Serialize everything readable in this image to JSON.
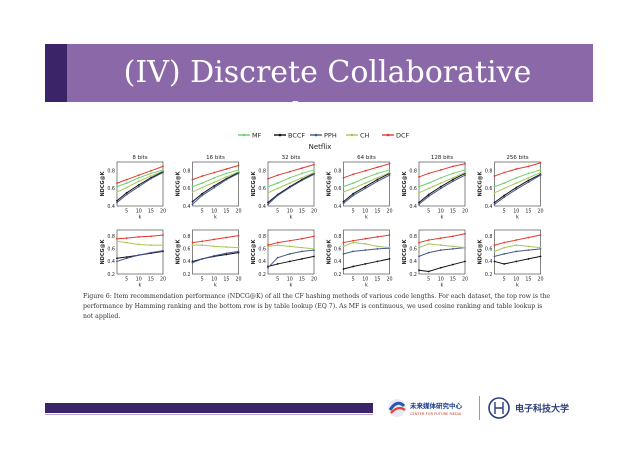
{
  "slide": {
    "title": "(IV) Discrete Collaborative Filtering",
    "caption": "Figure 6: Item recommendation performance (NDCG@K) of all the CF hashing methods of various code lengths. For each dataset, the top row is the performance by Hamming ranking and the bottom row is by table lookup (EQ 7). As MF is continuous, we used cosine ranking and table lookup is not applied.",
    "logo_left_cn": "未来媒体研究中心",
    "logo_left_en": "CENTER FOR FUTURE MEDIA",
    "logo_right_cn": "电子科技大学"
  },
  "colors": {
    "title_bar": "#8b68a8",
    "accent": "#3b2467",
    "MF": "#6fcf6f",
    "BCCF": "#111111",
    "PPH": "#46598f",
    "CH": "#a8c65a",
    "DCF": "#e03a2e"
  },
  "chart_data": {
    "type": "line",
    "title": "Netflix",
    "xlabel": "k",
    "ylabel": "NDCG@K",
    "x": [
      1,
      5,
      10,
      15,
      20
    ],
    "xticks": [
      5,
      10,
      15,
      20
    ],
    "legend": [
      "MF",
      "BCCF",
      "PPH",
      "CH",
      "DCF"
    ],
    "legend_placement": "top-center",
    "code_lengths": [
      "8 bits",
      "16 bits",
      "32 bits",
      "64 bits",
      "128 bits",
      "256 bits"
    ],
    "rows": [
      {
        "name": "Hamming ranking",
        "ylim": [
          0.4,
          0.9
        ],
        "yticks": [
          0.4,
          0.6,
          0.8
        ],
        "panels": [
          {
            "MF": [
              0.62,
              0.66,
              0.72,
              0.77,
              0.81
            ],
            "BCCF": [
              0.46,
              0.55,
              0.64,
              0.72,
              0.79
            ],
            "PPH": [
              0.44,
              0.53,
              0.62,
              0.71,
              0.78
            ],
            "CH": [
              0.56,
              0.61,
              0.68,
              0.74,
              0.8
            ],
            "DCF": [
              0.66,
              0.7,
              0.75,
              0.8,
              0.85
            ]
          },
          {
            "MF": [
              0.62,
              0.66,
              0.72,
              0.77,
              0.81
            ],
            "BCCF": [
              0.45,
              0.54,
              0.63,
              0.71,
              0.78
            ],
            "PPH": [
              0.42,
              0.52,
              0.61,
              0.7,
              0.77
            ],
            "CH": [
              0.56,
              0.61,
              0.67,
              0.73,
              0.79
            ],
            "DCF": [
              0.7,
              0.74,
              0.78,
              0.82,
              0.86
            ]
          },
          {
            "MF": [
              0.62,
              0.66,
              0.72,
              0.77,
              0.81
            ],
            "BCCF": [
              0.44,
              0.53,
              0.62,
              0.7,
              0.77
            ],
            "PPH": [
              0.42,
              0.52,
              0.61,
              0.69,
              0.76
            ],
            "CH": [
              0.55,
              0.6,
              0.66,
              0.72,
              0.78
            ],
            "DCF": [
              0.71,
              0.75,
              0.79,
              0.83,
              0.87
            ]
          },
          {
            "MF": [
              0.62,
              0.66,
              0.72,
              0.77,
              0.81
            ],
            "BCCF": [
              0.45,
              0.54,
              0.62,
              0.7,
              0.77
            ],
            "PPH": [
              0.43,
              0.52,
              0.6,
              0.68,
              0.75
            ],
            "CH": [
              0.56,
              0.6,
              0.66,
              0.72,
              0.78
            ],
            "DCF": [
              0.72,
              0.76,
              0.8,
              0.84,
              0.88
            ]
          },
          {
            "MF": [
              0.62,
              0.66,
              0.72,
              0.77,
              0.81
            ],
            "BCCF": [
              0.44,
              0.53,
              0.62,
              0.7,
              0.77
            ],
            "PPH": [
              0.42,
              0.51,
              0.6,
              0.68,
              0.75
            ],
            "CH": [
              0.55,
              0.6,
              0.66,
              0.72,
              0.78
            ],
            "DCF": [
              0.73,
              0.77,
              0.81,
              0.85,
              0.88
            ]
          },
          {
            "MF": [
              0.62,
              0.66,
              0.72,
              0.77,
              0.81
            ],
            "BCCF": [
              0.44,
              0.52,
              0.61,
              0.69,
              0.76
            ],
            "PPH": [
              0.42,
              0.5,
              0.59,
              0.67,
              0.75
            ],
            "CH": [
              0.55,
              0.6,
              0.66,
              0.72,
              0.78
            ],
            "DCF": [
              0.74,
              0.78,
              0.82,
              0.85,
              0.89
            ]
          }
        ]
      },
      {
        "name": "Table lookup",
        "ylim": [
          0.2,
          0.9
        ],
        "yticks": [
          0.2,
          0.4,
          0.6,
          0.8
        ],
        "panels": [
          {
            "BCCF": [
              0.45,
              0.47,
              0.5,
              0.53,
              0.56
            ],
            "PPH": [
              0.4,
              0.45,
              0.5,
              0.54,
              0.57
            ],
            "CH": [
              0.72,
              0.7,
              0.67,
              0.66,
              0.66
            ],
            "DCF": [
              0.76,
              0.77,
              0.79,
              0.8,
              0.82
            ]
          },
          {
            "BCCF": [
              0.4,
              0.44,
              0.48,
              0.51,
              0.54
            ],
            "PPH": [
              0.38,
              0.44,
              0.49,
              0.53,
              0.56
            ],
            "CH": [
              0.66,
              0.66,
              0.64,
              0.63,
              0.62
            ],
            "DCF": [
              0.7,
              0.72,
              0.75,
              0.78,
              0.81
            ]
          },
          {
            "BCCF": [
              0.32,
              0.36,
              0.4,
              0.44,
              0.48
            ],
            "PPH": [
              0.3,
              0.46,
              0.52,
              0.56,
              0.58
            ],
            "CH": [
              0.64,
              0.66,
              0.64,
              0.62,
              0.6
            ],
            "DCF": [
              0.66,
              0.7,
              0.73,
              0.76,
              0.8
            ]
          },
          {
            "BCCF": [
              0.28,
              0.32,
              0.36,
              0.4,
              0.44
            ],
            "PPH": [
              0.52,
              0.56,
              0.58,
              0.6,
              0.61
            ],
            "CH": [
              0.64,
              0.7,
              0.68,
              0.64,
              0.62
            ],
            "DCF": [
              0.7,
              0.73,
              0.76,
              0.79,
              0.82
            ]
          },
          {
            "BCCF": [
              0.26,
              0.24,
              0.3,
              0.35,
              0.4
            ],
            "PPH": [
              0.48,
              0.54,
              0.58,
              0.6,
              0.62
            ],
            "CH": [
              0.62,
              0.68,
              0.66,
              0.64,
              0.62
            ],
            "DCF": [
              0.7,
              0.74,
              0.77,
              0.8,
              0.84
            ]
          },
          {
            "BCCF": [
              0.4,
              0.36,
              0.4,
              0.44,
              0.48
            ],
            "PPH": [
              0.48,
              0.52,
              0.56,
              0.58,
              0.6
            ],
            "CH": [
              0.56,
              0.62,
              0.66,
              0.64,
              0.62
            ],
            "DCF": [
              0.66,
              0.7,
              0.74,
              0.78,
              0.82
            ]
          }
        ]
      }
    ]
  }
}
